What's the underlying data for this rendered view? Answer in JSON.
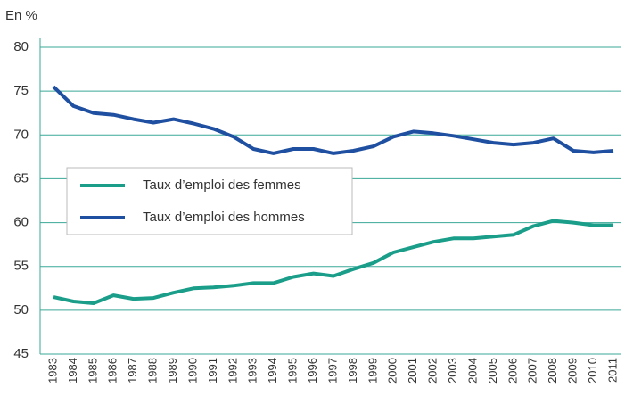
{
  "chart_data": {
    "type": "line",
    "y_label": "En %",
    "categories": [
      "1983",
      "1984",
      "1985",
      "1986",
      "1987",
      "1988",
      "1989",
      "1990",
      "1991",
      "1992",
      "1993",
      "1994",
      "1995",
      "1996",
      "1997",
      "1998",
      "1999",
      "2000",
      "2001",
      "2002",
      "2003",
      "2004",
      "2005",
      "2006",
      "2007",
      "2008",
      "2009",
      "2010",
      "2011"
    ],
    "series": [
      {
        "name": "Taux d’emploi des femmes",
        "color": "#1a9e8a",
        "values": [
          51.5,
          51.0,
          50.8,
          51.7,
          51.3,
          51.4,
          52.0,
          52.5,
          52.6,
          52.8,
          53.1,
          53.1,
          53.8,
          54.2,
          53.9,
          54.7,
          55.4,
          56.6,
          57.2,
          57.8,
          58.2,
          58.2,
          58.4,
          58.6,
          59.6,
          60.2,
          60.0,
          59.7,
          59.7
        ]
      },
      {
        "name": "Taux d’emploi des hommes",
        "color": "#1f4fa0",
        "values": [
          75.5,
          73.3,
          72.5,
          72.3,
          71.8,
          71.4,
          71.8,
          71.3,
          70.7,
          69.8,
          68.4,
          67.9,
          68.4,
          68.4,
          67.9,
          68.2,
          68.7,
          69.8,
          70.4,
          70.2,
          69.9,
          69.5,
          69.1,
          68.9,
          69.1,
          69.6,
          68.2,
          68.0,
          68.2
        ]
      }
    ],
    "ylim": [
      45,
      80
    ],
    "yticks": [
      45,
      50,
      55,
      60,
      65,
      70,
      75,
      80
    ],
    "grid": true,
    "legend": "left"
  }
}
